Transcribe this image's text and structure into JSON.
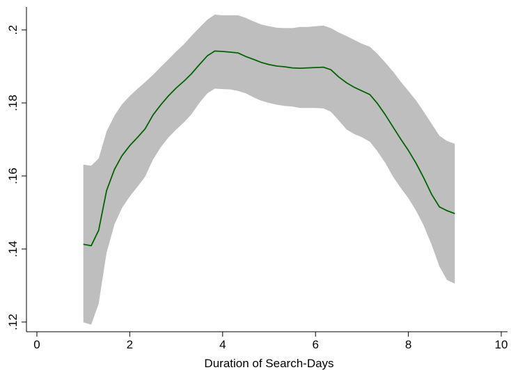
{
  "chart_data": {
    "type": "line",
    "title": "",
    "xlabel": "Duration of Search-Days",
    "ylabel": "",
    "xlim": [
      0,
      10
    ],
    "ylim": [
      0.12,
      0.2
    ],
    "x_ticks": [
      0,
      2,
      4,
      6,
      8,
      10
    ],
    "x_tick_labels": [
      "0",
      "2",
      "4",
      "6",
      "8",
      "10"
    ],
    "y_ticks": [
      0.12,
      0.14,
      0.16,
      0.18,
      0.2
    ],
    "y_tick_labels": [
      ".12",
      ".14",
      ".16",
      ".18",
      ".2"
    ],
    "grid": false,
    "legend": "none",
    "colors": {
      "line": "#006400",
      "band": "#bebebe",
      "axis": "#000000"
    },
    "x": [
      1.0,
      1.17,
      1.33,
      1.5,
      1.67,
      1.83,
      2.0,
      2.17,
      2.33,
      2.5,
      2.67,
      2.83,
      3.0,
      3.17,
      3.33,
      3.5,
      3.67,
      3.83,
      4.0,
      4.17,
      4.33,
      4.5,
      4.67,
      4.83,
      5.0,
      5.17,
      5.33,
      5.5,
      5.67,
      5.83,
      6.0,
      6.17,
      6.33,
      6.5,
      6.67,
      6.83,
      7.0,
      7.17,
      7.33,
      7.5,
      7.67,
      7.83,
      8.0,
      8.17,
      8.33,
      8.5,
      8.67,
      8.83,
      9.0
    ],
    "series": [
      {
        "values": [
          0.1413,
          0.1409,
          0.1451,
          0.156,
          0.1618,
          0.1655,
          0.1683,
          0.1706,
          0.1729,
          0.1767,
          0.1795,
          0.1819,
          0.1841,
          0.186,
          0.188,
          0.1905,
          0.1929,
          0.1942,
          0.1941,
          0.1939,
          0.1937,
          0.1927,
          0.1919,
          0.1911,
          0.1905,
          0.1901,
          0.1899,
          0.1896,
          0.1895,
          0.1896,
          0.1897,
          0.1898,
          0.1891,
          0.1871,
          0.1855,
          0.1843,
          0.1833,
          0.1823,
          0.1799,
          0.1768,
          0.1734,
          0.1702,
          0.167,
          0.1634,
          0.1595,
          0.155,
          0.1515,
          0.1505,
          0.1497
        ]
      }
    ],
    "band": {
      "upper": [
        0.1631,
        0.1628,
        0.1648,
        0.1722,
        0.1765,
        0.1796,
        0.1819,
        0.1839,
        0.1857,
        0.1877,
        0.1899,
        0.1919,
        0.1941,
        0.1961,
        0.1984,
        0.2006,
        0.2028,
        0.2042,
        0.204,
        0.204,
        0.204,
        0.2033,
        0.2023,
        0.2015,
        0.201,
        0.2006,
        0.2005,
        0.2005,
        0.2008,
        0.2008,
        0.201,
        0.2012,
        0.2005,
        0.1993,
        0.1983,
        0.1973,
        0.1962,
        0.1954,
        0.1935,
        0.1911,
        0.1886,
        0.1859,
        0.1833,
        0.1806,
        0.1776,
        0.1743,
        0.171,
        0.1696,
        0.1688
      ],
      "lower": [
        0.1199,
        0.1193,
        0.125,
        0.139,
        0.1467,
        0.1512,
        0.1544,
        0.1571,
        0.1598,
        0.1645,
        0.1679,
        0.1705,
        0.1727,
        0.1747,
        0.1769,
        0.18,
        0.1826,
        0.1839,
        0.1838,
        0.1837,
        0.1833,
        0.1826,
        0.1815,
        0.1806,
        0.18,
        0.1795,
        0.1792,
        0.179,
        0.1786,
        0.1786,
        0.1786,
        0.1785,
        0.1776,
        0.1752,
        0.1727,
        0.1715,
        0.1706,
        0.1694,
        0.1668,
        0.1636,
        0.1598,
        0.1568,
        0.1539,
        0.1504,
        0.1464,
        0.1412,
        0.1352,
        0.1315,
        0.1305
      ]
    }
  }
}
